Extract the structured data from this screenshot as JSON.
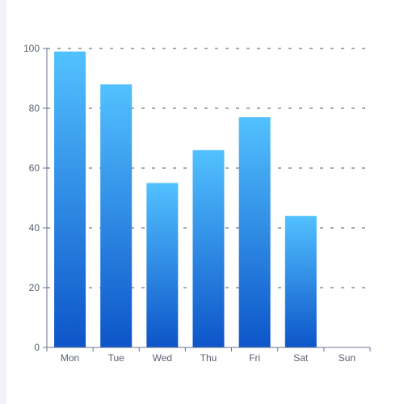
{
  "chart_data": {
    "type": "bar",
    "title": "",
    "xlabel": "",
    "ylabel": "",
    "categories": [
      "Mon",
      "Tue",
      "Wed",
      "Thu",
      "Fri",
      "Sat",
      "Sun"
    ],
    "values": [
      99,
      88,
      55,
      66,
      77,
      44,
      null
    ],
    "ylim": [
      0,
      100
    ],
    "yticks": [
      "0",
      "20",
      "40",
      "60",
      "80",
      "100"
    ],
    "grid": "horizontal dashed",
    "colors": {
      "bar_top": "#52c1ff",
      "bar_bottom": "#0d55c9",
      "axis": "#6b7390",
      "grid": "#555555",
      "tick_text": "#5a6072"
    }
  }
}
